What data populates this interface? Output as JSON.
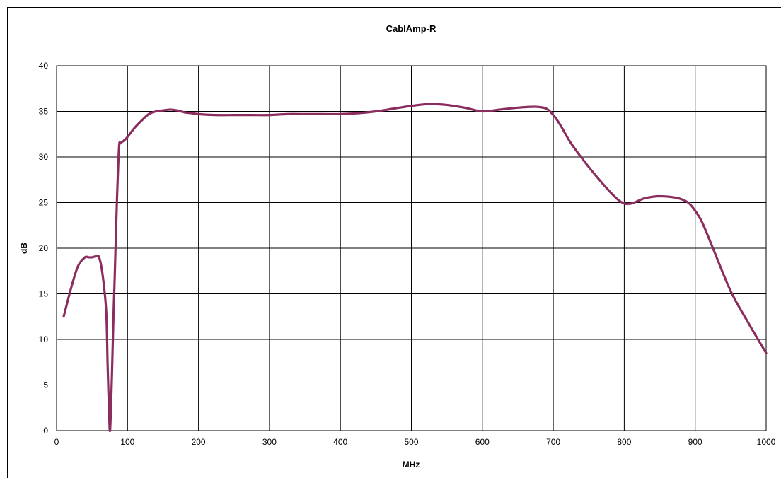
{
  "chart_data": {
    "type": "line",
    "title": "CablAmp-R",
    "xlabel": "MHz",
    "ylabel": "dB",
    "xlim": [
      0,
      1000
    ],
    "ylim": [
      0,
      40
    ],
    "x_ticks": [
      "0",
      "100",
      "200",
      "300",
      "400",
      "500",
      "600",
      "700",
      "800",
      "900",
      "1000"
    ],
    "y_ticks": [
      "0",
      "5",
      "10",
      "15",
      "20",
      "25",
      "30",
      "35",
      "40"
    ],
    "grid": true,
    "legend": "none",
    "series": [
      {
        "color": "#8B2E5F",
        "x": [
          10,
          20,
          30,
          40,
          45,
          50,
          55,
          60,
          65,
          70,
          72,
          74,
          75,
          76,
          78,
          80,
          82,
          85,
          88,
          90,
          95,
          100,
          110,
          120,
          130,
          140,
          150,
          160,
          170,
          180,
          190,
          200,
          225,
          250,
          275,
          300,
          325,
          350,
          375,
          400,
          425,
          450,
          475,
          500,
          525,
          550,
          575,
          600,
          625,
          650,
          675,
          690,
          700,
          710,
          725,
          750,
          775,
          790,
          800,
          810,
          820,
          830,
          850,
          875,
          890,
          900,
          910,
          925,
          950,
          975,
          1000
        ],
        "y": [
          12.5,
          15.5,
          18.0,
          19.0,
          19.0,
          19.0,
          19.1,
          19.0,
          17.0,
          13.0,
          7.0,
          2.0,
          0.0,
          1.0,
          6.0,
          12.0,
          17.0,
          25.0,
          31.0,
          31.5,
          31.8,
          32.2,
          33.2,
          34.0,
          34.7,
          35.0,
          35.1,
          35.2,
          35.1,
          34.9,
          34.8,
          34.7,
          34.6,
          34.6,
          34.6,
          34.6,
          34.7,
          34.7,
          34.7,
          34.7,
          34.8,
          35.0,
          35.3,
          35.6,
          35.8,
          35.7,
          35.4,
          35.0,
          35.2,
          35.4,
          35.5,
          35.3,
          34.6,
          33.5,
          31.5,
          28.9,
          26.6,
          25.4,
          24.9,
          24.9,
          25.2,
          25.5,
          25.7,
          25.5,
          25.0,
          24.1,
          22.8,
          20.0,
          15.3,
          11.8,
          8.5
        ]
      }
    ]
  }
}
